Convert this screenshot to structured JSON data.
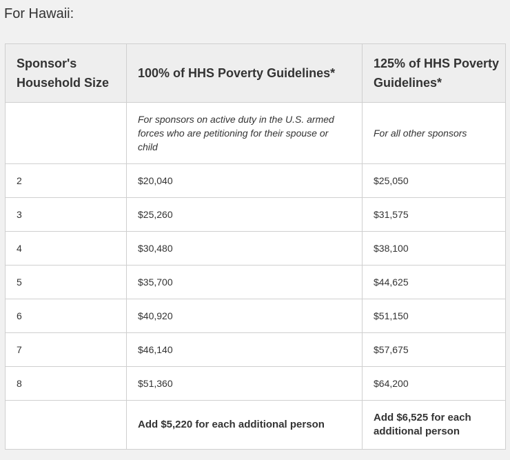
{
  "heading": "For Hawaii:",
  "table": {
    "headers": [
      "Sponsor's Household Size",
      "100% of HHS Poverty Guidelines*",
      "125% of HHS Poverty Guidelines*"
    ],
    "notes": [
      "",
      "For sponsors on active duty in the U.S. armed forces who are petitioning for their spouse or child",
      "For all other sponsors"
    ],
    "rows": [
      [
        "2",
        "$20,040",
        "$25,050"
      ],
      [
        "3",
        "$25,260",
        "$31,575"
      ],
      [
        "4",
        "$30,480",
        "$38,100"
      ],
      [
        "5",
        "$35,700",
        "$44,625"
      ],
      [
        "6",
        "$40,920",
        "$51,150"
      ],
      [
        "7",
        "$46,140",
        "$57,675"
      ],
      [
        "8",
        "$51,360",
        "$64,200"
      ]
    ],
    "additional": [
      "",
      "Add $5,220 for each additional person",
      "Add $6,525 for each additional person"
    ]
  }
}
